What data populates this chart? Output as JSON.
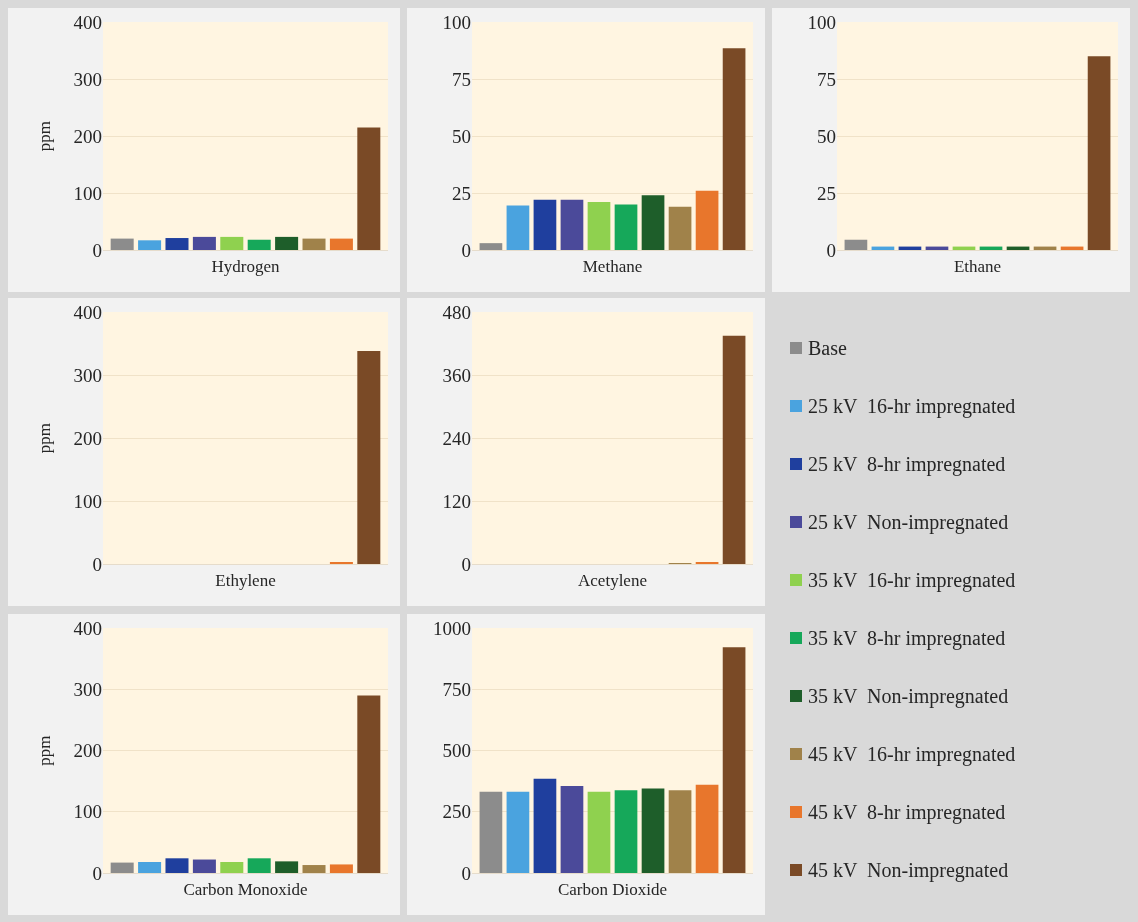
{
  "chart_data": [
    {
      "type": "bar",
      "xlabel": "Hydrogen",
      "ylabel": "ppm",
      "categories": [
        null,
        null,
        null,
        null,
        null,
        null,
        null,
        null,
        null,
        null
      ],
      "ylim": [
        0,
        400
      ],
      "yticks": [
        0,
        100,
        200,
        300,
        400
      ],
      "grid": "y",
      "series": [
        {
          "color": "#8c8c8c",
          "values": [
            20,
            null,
            null,
            null,
            null,
            null,
            null,
            null,
            null,
            null
          ]
        },
        {
          "color": "#4aa3df",
          "values": [
            null,
            17,
            null,
            null,
            null,
            null,
            null,
            null,
            null,
            null
          ]
        },
        {
          "color": "#1f3f9e",
          "values": [
            null,
            null,
            21,
            null,
            null,
            null,
            null,
            null,
            null,
            null
          ]
        },
        {
          "color": "#4b4a9a",
          "values": [
            null,
            null,
            null,
            23,
            null,
            null,
            null,
            null,
            null,
            null
          ]
        },
        {
          "color": "#8fd14f",
          "values": [
            null,
            null,
            null,
            null,
            23,
            null,
            null,
            null,
            null,
            null
          ]
        },
        {
          "color": "#16a85a",
          "values": [
            null,
            null,
            null,
            null,
            null,
            18,
            null,
            null,
            null,
            null
          ]
        },
        {
          "color": "#1e5e2a",
          "values": [
            null,
            null,
            null,
            null,
            null,
            null,
            23,
            null,
            null,
            null
          ]
        },
        {
          "color": "#a0824a",
          "values": [
            null,
            null,
            null,
            null,
            null,
            null,
            null,
            20,
            null,
            null
          ]
        },
        {
          "color": "#e8762c",
          "values": [
            null,
            null,
            null,
            null,
            null,
            null,
            null,
            null,
            20,
            null
          ]
        },
        {
          "color": "#7a4a26",
          "values": [
            null,
            null,
            null,
            null,
            null,
            null,
            null,
            null,
            null,
            215
          ]
        }
      ]
    },
    {
      "type": "bar",
      "xlabel": "Methane",
      "categories": [
        null,
        null,
        null,
        null,
        null,
        null,
        null,
        null,
        null,
        null
      ],
      "ylim": [
        0,
        100
      ],
      "yticks": [
        0,
        25,
        50,
        75,
        100
      ],
      "grid": "y",
      "series": [
        {
          "color": "#8c8c8c",
          "values": [
            3,
            null,
            null,
            null,
            null,
            null,
            null,
            null,
            null,
            null
          ]
        },
        {
          "color": "#4aa3df",
          "values": [
            null,
            19.5,
            null,
            null,
            null,
            null,
            null,
            null,
            null,
            null
          ]
        },
        {
          "color": "#1f3f9e",
          "values": [
            null,
            null,
            22,
            null,
            null,
            null,
            null,
            null,
            null,
            null
          ]
        },
        {
          "color": "#4b4a9a",
          "values": [
            null,
            null,
            null,
            22,
            null,
            null,
            null,
            null,
            null,
            null
          ]
        },
        {
          "color": "#8fd14f",
          "values": [
            null,
            null,
            null,
            null,
            21,
            null,
            null,
            null,
            null,
            null
          ]
        },
        {
          "color": "#16a85a",
          "values": [
            null,
            null,
            null,
            null,
            null,
            20,
            null,
            null,
            null,
            null
          ]
        },
        {
          "color": "#1e5e2a",
          "values": [
            null,
            null,
            null,
            null,
            null,
            null,
            24,
            null,
            null,
            null
          ]
        },
        {
          "color": "#a0824a",
          "values": [
            null,
            null,
            null,
            null,
            null,
            null,
            null,
            19,
            null,
            null
          ]
        },
        {
          "color": "#e8762c",
          "values": [
            null,
            null,
            null,
            null,
            null,
            null,
            null,
            null,
            26,
            null
          ]
        },
        {
          "color": "#7a4a26",
          "values": [
            null,
            null,
            null,
            null,
            null,
            null,
            null,
            null,
            null,
            88.5
          ]
        }
      ]
    },
    {
      "type": "bar",
      "xlabel": "Ethane",
      "legend": "bottom",
      "categories": [
        null,
        null,
        null,
        null,
        null,
        null,
        null,
        null,
        null,
        null
      ],
      "ylim": [
        0,
        100
      ],
      "yticks": [
        0,
        25,
        50,
        75,
        100
      ],
      "grid": "y",
      "series": [
        {
          "name": "Base",
          "color": "#8c8c8c",
          "values": [
            4.5,
            null,
            null,
            null,
            null,
            null,
            null,
            null,
            null,
            null
          ]
        },
        {
          "name": "25 kV  16-hr impregnated",
          "color": "#4aa3df",
          "values": [
            null,
            1.5,
            null,
            null,
            null,
            null,
            null,
            null,
            null,
            null
          ]
        },
        {
          "name": "25 kV  8-hr impregnated",
          "color": "#1f3f9e",
          "values": [
            null,
            null,
            1.5,
            null,
            null,
            null,
            null,
            null,
            null,
            null
          ]
        },
        {
          "name": "25 kV  Non-impregnated",
          "color": "#4b4a9a",
          "values": [
            null,
            null,
            null,
            1.5,
            null,
            null,
            null,
            null,
            null,
            null
          ]
        },
        {
          "name": "35 kV  16-hr impregnated",
          "color": "#8fd14f",
          "values": [
            null,
            null,
            null,
            null,
            1.5,
            null,
            null,
            null,
            null,
            null
          ]
        },
        {
          "name": "35 kV  8-hr impregnated",
          "color": "#16a85a",
          "values": [
            null,
            null,
            null,
            null,
            null,
            1.5,
            null,
            null,
            null,
            null
          ]
        },
        {
          "name": "35 kV  Non-impregnated",
          "color": "#1e5e2a",
          "values": [
            null,
            null,
            null,
            null,
            null,
            null,
            1.5,
            null,
            null,
            null
          ]
        },
        {
          "name": "45 kV  16-hr impregnated",
          "color": "#a0824a",
          "values": [
            null,
            null,
            null,
            null,
            null,
            null,
            null,
            1.5,
            null,
            null
          ]
        },
        {
          "name": "45 kV  8-hr impregnated",
          "color": "#e8762c",
          "values": [
            null,
            null,
            null,
            null,
            null,
            null,
            null,
            null,
            1.5,
            null
          ]
        },
        {
          "name": "45 kV  Non-impregnated",
          "color": "#7a4a26",
          "values": [
            null,
            null,
            null,
            null,
            null,
            null,
            null,
            null,
            null,
            85
          ]
        }
      ]
    },
    {
      "type": "bar",
      "xlabel": "Ethylene",
      "ylabel": "ppm",
      "categories": [
        null,
        null,
        null,
        null,
        null,
        null,
        null,
        null,
        null,
        null
      ],
      "ylim": [
        0,
        400
      ],
      "yticks": [
        0,
        100,
        200,
        300,
        400
      ],
      "grid": "y",
      "series": [
        {
          "color": "#8c8c8c",
          "values": [
            0,
            null,
            null,
            null,
            null,
            null,
            null,
            null,
            null,
            null
          ]
        },
        {
          "color": "#4aa3df",
          "values": [
            null,
            0,
            null,
            null,
            null,
            null,
            null,
            null,
            null,
            null
          ]
        },
        {
          "color": "#1f3f9e",
          "values": [
            null,
            null,
            0,
            null,
            null,
            null,
            null,
            null,
            null,
            null
          ]
        },
        {
          "color": "#4b4a9a",
          "values": [
            null,
            null,
            null,
            0,
            null,
            null,
            null,
            null,
            null,
            null
          ]
        },
        {
          "color": "#8fd14f",
          "values": [
            null,
            null,
            null,
            null,
            0,
            null,
            null,
            null,
            null,
            null
          ]
        },
        {
          "color": "#16a85a",
          "values": [
            null,
            null,
            null,
            null,
            null,
            0,
            null,
            null,
            null,
            null
          ]
        },
        {
          "color": "#1e5e2a",
          "values": [
            null,
            null,
            null,
            null,
            null,
            null,
            0,
            null,
            null,
            null
          ]
        },
        {
          "color": "#a0824a",
          "values": [
            null,
            null,
            null,
            null,
            null,
            null,
            null,
            0,
            null,
            null
          ]
        },
        {
          "color": "#e8762c",
          "values": [
            null,
            null,
            null,
            null,
            null,
            null,
            null,
            null,
            2,
            null
          ]
        },
        {
          "color": "#7a4a26",
          "values": [
            null,
            null,
            null,
            null,
            null,
            null,
            null,
            null,
            null,
            338
          ]
        }
      ]
    },
    {
      "type": "bar",
      "xlabel": "Acetylene",
      "categories": [
        null,
        null,
        null,
        null,
        null,
        null,
        null,
        null,
        null,
        null
      ],
      "ylim": [
        0,
        480
      ],
      "yticks": [
        0,
        120,
        240,
        360,
        480
      ],
      "grid": "y",
      "series": [
        {
          "color": "#8c8c8c",
          "values": [
            0,
            null,
            null,
            null,
            null,
            null,
            null,
            null,
            null,
            null
          ]
        },
        {
          "color": "#4aa3df",
          "values": [
            null,
            0,
            null,
            null,
            null,
            null,
            null,
            null,
            null,
            null
          ]
        },
        {
          "color": "#1f3f9e",
          "values": [
            null,
            null,
            0,
            null,
            null,
            null,
            null,
            null,
            null,
            null
          ]
        },
        {
          "color": "#4b4a9a",
          "values": [
            null,
            null,
            null,
            0,
            null,
            null,
            null,
            null,
            null,
            null
          ]
        },
        {
          "color": "#8fd14f",
          "values": [
            null,
            null,
            null,
            null,
            0,
            null,
            null,
            null,
            null,
            null
          ]
        },
        {
          "color": "#16a85a",
          "values": [
            null,
            null,
            null,
            null,
            null,
            0,
            null,
            null,
            null,
            null
          ]
        },
        {
          "color": "#1e5e2a",
          "values": [
            null,
            null,
            null,
            null,
            null,
            null,
            0,
            null,
            null,
            null
          ]
        },
        {
          "color": "#a0824a",
          "values": [
            null,
            null,
            null,
            null,
            null,
            null,
            null,
            1,
            null,
            null
          ]
        },
        {
          "color": "#e8762c",
          "values": [
            null,
            null,
            null,
            null,
            null,
            null,
            null,
            null,
            3,
            null
          ]
        },
        {
          "color": "#7a4a26",
          "values": [
            null,
            null,
            null,
            null,
            null,
            null,
            null,
            null,
            null,
            435
          ]
        }
      ]
    },
    {
      "type": "bar",
      "xlabel": "Carbon Monoxide",
      "ylabel": "ppm",
      "categories": [
        null,
        null,
        null,
        null,
        null,
        null,
        null,
        null,
        null,
        null
      ],
      "ylim": [
        0,
        400
      ],
      "yticks": [
        0,
        100,
        200,
        300,
        400
      ],
      "grid": "y",
      "series": [
        {
          "color": "#8c8c8c",
          "values": [
            17,
            null,
            null,
            null,
            null,
            null,
            null,
            null,
            null,
            null
          ]
        },
        {
          "color": "#4aa3df",
          "values": [
            null,
            18,
            null,
            null,
            null,
            null,
            null,
            null,
            null,
            null
          ]
        },
        {
          "color": "#1f3f9e",
          "values": [
            null,
            null,
            24,
            null,
            null,
            null,
            null,
            null,
            null,
            null
          ]
        },
        {
          "color": "#4b4a9a",
          "values": [
            null,
            null,
            null,
            22,
            null,
            null,
            null,
            null,
            null,
            null
          ]
        },
        {
          "color": "#8fd14f",
          "values": [
            null,
            null,
            null,
            null,
            18,
            null,
            null,
            null,
            null,
            null
          ]
        },
        {
          "color": "#16a85a",
          "values": [
            null,
            null,
            null,
            null,
            null,
            24,
            null,
            null,
            null,
            null
          ]
        },
        {
          "color": "#1e5e2a",
          "values": [
            null,
            null,
            null,
            null,
            null,
            null,
            19,
            null,
            null,
            null
          ]
        },
        {
          "color": "#a0824a",
          "values": [
            null,
            null,
            null,
            null,
            null,
            null,
            null,
            13,
            null,
            null
          ]
        },
        {
          "color": "#e8762c",
          "values": [
            null,
            null,
            null,
            null,
            null,
            null,
            null,
            null,
            14,
            null
          ]
        },
        {
          "color": "#7a4a26",
          "values": [
            null,
            null,
            null,
            null,
            null,
            null,
            null,
            null,
            null,
            290
          ]
        }
      ]
    },
    {
      "type": "bar",
      "xlabel": "Carbon Dioxide",
      "categories": [
        null,
        null,
        null,
        null,
        null,
        null,
        null,
        null,
        null,
        null
      ],
      "ylim": [
        0,
        1000
      ],
      "yticks": [
        0,
        250,
        500,
        750,
        1000
      ],
      "grid": "y",
      "series": [
        {
          "color": "#8c8c8c",
          "values": [
            332,
            null,
            null,
            null,
            null,
            null,
            null,
            null,
            null,
            null
          ]
        },
        {
          "color": "#4aa3df",
          "values": [
            null,
            332,
            null,
            null,
            null,
            null,
            null,
            null,
            null,
            null
          ]
        },
        {
          "color": "#1f3f9e",
          "values": [
            null,
            null,
            385,
            null,
            null,
            null,
            null,
            null,
            null,
            null
          ]
        },
        {
          "color": "#4b4a9a",
          "values": [
            null,
            null,
            null,
            355,
            null,
            null,
            null,
            null,
            null,
            null
          ]
        },
        {
          "color": "#8fd14f",
          "values": [
            null,
            null,
            null,
            null,
            332,
            null,
            null,
            null,
            null,
            null
          ]
        },
        {
          "color": "#16a85a",
          "values": [
            null,
            null,
            null,
            null,
            null,
            338,
            null,
            null,
            null,
            null
          ]
        },
        {
          "color": "#1e5e2a",
          "values": [
            null,
            null,
            null,
            null,
            null,
            null,
            345,
            null,
            null,
            null
          ]
        },
        {
          "color": "#a0824a",
          "values": [
            null,
            null,
            null,
            null,
            null,
            null,
            null,
            338,
            null,
            null
          ]
        },
        {
          "color": "#e8762c",
          "values": [
            null,
            null,
            null,
            null,
            null,
            null,
            null,
            null,
            360,
            null
          ]
        },
        {
          "color": "#7a4a26",
          "values": [
            null,
            null,
            null,
            null,
            null,
            null,
            null,
            null,
            null,
            921
          ]
        }
      ]
    }
  ]
}
